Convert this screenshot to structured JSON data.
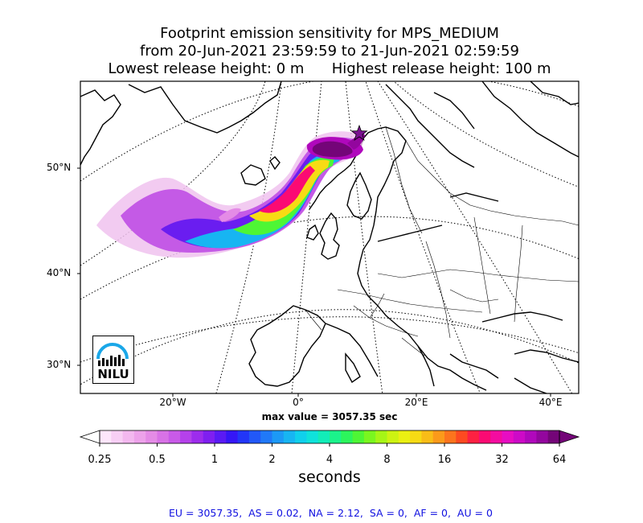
{
  "title": {
    "line1": "Footprint emission sensitivity for MPS_MEDIUM",
    "line2": "from 20-Jun-2021 23:59:59 to 21-Jun-2021 02:59:59",
    "line3": "Lowest release height: 0 m      Highest release height: 100 m"
  },
  "map": {
    "lat_labels": [
      "50°N",
      "40°N",
      "30°N"
    ],
    "lon_labels": [
      "20°W",
      "0°",
      "20°E",
      "40°E"
    ],
    "logo_text": "NILU",
    "release_marker": "star-icon",
    "max_value_text": "max value = 3057.35 sec"
  },
  "colorbar": {
    "tick_labels": [
      "0.25",
      "0.5",
      "1",
      "2",
      "4",
      "8",
      "16",
      "32",
      "64"
    ],
    "unit_label": "seconds",
    "colors": [
      "#fde6fb",
      "#f8cff5",
      "#f3b8ef",
      "#eda2ea",
      "#e48be6",
      "#d872e6",
      "#c95ae8",
      "#b541ea",
      "#9d2cec",
      "#7f1ff0",
      "#5a1af4",
      "#3516f6",
      "#2236f8",
      "#2258f8",
      "#2079f8",
      "#1c99f6",
      "#17b5f2",
      "#10d0ec",
      "#0fe2db",
      "#12edb8",
      "#1bf38b",
      "#2cf55c",
      "#4ef635",
      "#7af61f",
      "#a6f516",
      "#cdf312",
      "#eaf012",
      "#f7db14",
      "#f9bd17",
      "#fb9a1a",
      "#fc741d",
      "#fd4a21",
      "#fd2142",
      "#fb0a73",
      "#f40ca0",
      "#e70dc2",
      "#cd0ac7",
      "#b008bc",
      "#93069e",
      "#740578"
    ]
  },
  "footer": "EU = 3057.35,  AS = 0.02,  NA = 2.12,  SA = 0,  AF = 0,  AU = 0"
}
